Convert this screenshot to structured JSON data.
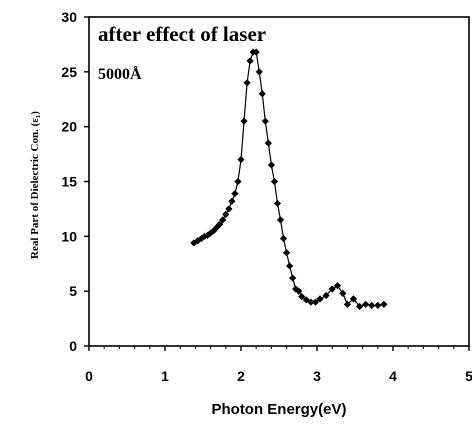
{
  "chart_data": {
    "type": "line",
    "title": "",
    "xlabel": "Photon Energy(eV)",
    "ylabel": "Real Part of Dielectric Con. (ε₁)",
    "xlim": [
      0,
      5
    ],
    "ylim": [
      0,
      30
    ],
    "x_ticks": [
      "0",
      "1",
      "2",
      "3",
      "4",
      "5"
    ],
    "y_ticks": [
      "0",
      "5",
      "10",
      "15",
      "20",
      "25",
      "30"
    ],
    "grid": false,
    "legend": "none",
    "annotations": [
      "after effect of laser",
      "5000Å"
    ],
    "marker": "diamond",
    "color": "#000000",
    "series": [
      {
        "x": [
          1.38,
          1.43,
          1.48,
          1.52,
          1.56,
          1.6,
          1.64,
          1.68,
          1.72,
          1.76,
          1.8,
          1.84,
          1.88,
          1.92,
          1.96,
          2.0,
          2.04,
          2.08,
          2.12,
          2.16,
          2.2,
          2.24,
          2.28,
          2.32,
          2.36,
          2.4,
          2.44,
          2.48,
          2.52,
          2.56,
          2.6,
          2.64,
          2.68,
          2.72,
          2.76,
          2.8,
          2.86,
          2.92,
          2.98,
          3.04,
          3.12,
          3.2,
          3.27,
          3.34,
          3.4,
          3.48,
          3.56,
          3.64,
          3.72,
          3.8,
          3.88
        ],
        "y": [
          9.4,
          9.6,
          9.8,
          10.0,
          10.1,
          10.3,
          10.5,
          10.8,
          11.1,
          11.5,
          12.0,
          12.5,
          13.2,
          13.9,
          15.0,
          17.0,
          20.5,
          24.0,
          26.0,
          26.8,
          26.8,
          25.0,
          23.0,
          20.5,
          18.5,
          16.5,
          15.0,
          13.0,
          11.5,
          9.8,
          8.5,
          7.3,
          6.2,
          5.2,
          5.0,
          4.5,
          4.2,
          4.0,
          4.0,
          4.3,
          4.6,
          5.2,
          5.5,
          4.8,
          3.8,
          4.3,
          3.6,
          3.8,
          3.7,
          3.7,
          3.8
        ]
      }
    ]
  }
}
